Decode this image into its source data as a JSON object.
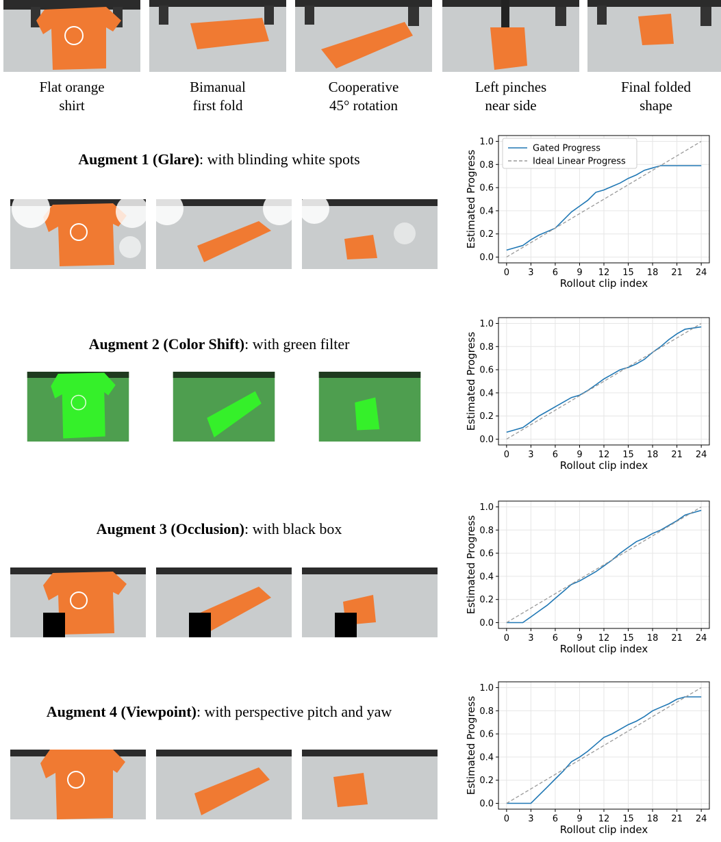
{
  "top_captions": [
    {
      "line1": "Flat orange",
      "line2": "shirt"
    },
    {
      "line1": "Bimanual",
      "line2": "first fold"
    },
    {
      "line1": "Cooperative",
      "line2": "45° rotation"
    },
    {
      "line1": "Left pinches",
      "line2": "near side"
    },
    {
      "line1": "Final folded",
      "line2": "shape"
    }
  ],
  "augments": [
    {
      "title_bold": "Augment 1 (Glare)",
      "title_rest": ": with blinding white spots"
    },
    {
      "title_bold": "Augment 2 (Color Shift)",
      "title_rest": ": with green filter"
    },
    {
      "title_bold": "Augment 3 (Occlusion)",
      "title_rest": ": with black box"
    },
    {
      "title_bold": "Augment 4 (Viewpoint)",
      "title_rest": ": with perspective pitch and yaw"
    }
  ],
  "colors": {
    "shirt_orange": "#f07a32",
    "shirt_green": "#35f02a",
    "floor_gray": "#c9cccd",
    "floor_green": "#4e9e4f",
    "gated_line": "#1f77b4",
    "ideal_line": "#999999"
  },
  "chart_data": [
    {
      "type": "line",
      "xlabel": "Rollout clip index",
      "ylabel": "Estimated Progress",
      "xlim": [
        0,
        24
      ],
      "ylim": [
        0,
        1.0
      ],
      "xticks": [
        "0",
        "3",
        "6",
        "9",
        "12",
        "15",
        "18",
        "21",
        "24"
      ],
      "yticks": [
        "0.0",
        "0.2",
        "0.4",
        "0.6",
        "0.8",
        "1.0"
      ],
      "grid": true,
      "legend": "top-left",
      "series": [
        {
          "name": "Gated Progress",
          "x": [
            0,
            1,
            2,
            3,
            4,
            5,
            6,
            7,
            8,
            9,
            10,
            11,
            12,
            13,
            14,
            15,
            16,
            17,
            18,
            19,
            20,
            21,
            22,
            23,
            24
          ],
          "y": [
            0.06,
            0.08,
            0.1,
            0.15,
            0.19,
            0.22,
            0.25,
            0.32,
            0.39,
            0.44,
            0.49,
            0.56,
            0.58,
            0.61,
            0.64,
            0.68,
            0.71,
            0.75,
            0.77,
            0.79,
            0.79,
            0.79,
            0.79,
            0.79,
            0.79
          ]
        },
        {
          "name": "Ideal Linear Progress",
          "x": [
            0,
            24
          ],
          "y": [
            0,
            1.0
          ]
        }
      ]
    },
    {
      "type": "line",
      "xlabel": "Rollout clip index",
      "ylabel": "Estimated Progress",
      "xlim": [
        0,
        24
      ],
      "ylim": [
        0,
        1.0
      ],
      "xticks": [
        "0",
        "3",
        "6",
        "9",
        "12",
        "15",
        "18",
        "21",
        "24"
      ],
      "yticks": [
        "0.0",
        "0.2",
        "0.4",
        "0.6",
        "0.8",
        "1.0"
      ],
      "grid": true,
      "series": [
        {
          "name": "Gated Progress",
          "x": [
            0,
            1,
            2,
            3,
            4,
            5,
            6,
            7,
            8,
            9,
            10,
            11,
            12,
            13,
            14,
            15,
            16,
            17,
            18,
            19,
            20,
            21,
            22,
            23,
            24
          ],
          "y": [
            0.06,
            0.08,
            0.1,
            0.15,
            0.2,
            0.24,
            0.28,
            0.32,
            0.36,
            0.38,
            0.42,
            0.47,
            0.52,
            0.56,
            0.6,
            0.62,
            0.65,
            0.69,
            0.75,
            0.8,
            0.86,
            0.91,
            0.95,
            0.96,
            0.97
          ]
        },
        {
          "name": "Ideal Linear Progress",
          "x": [
            0,
            24
          ],
          "y": [
            0,
            1.0
          ]
        }
      ]
    },
    {
      "type": "line",
      "xlabel": "Rollout clip index",
      "ylabel": "Estimated Progress",
      "xlim": [
        0,
        24
      ],
      "ylim": [
        0,
        1.0
      ],
      "xticks": [
        "0",
        "3",
        "6",
        "9",
        "12",
        "15",
        "18",
        "21",
        "24"
      ],
      "yticks": [
        "0.0",
        "0.2",
        "0.4",
        "0.6",
        "0.8",
        "1.0"
      ],
      "grid": true,
      "series": [
        {
          "name": "Gated Progress",
          "x": [
            0,
            1,
            2,
            3,
            4,
            5,
            6,
            7,
            8,
            9,
            10,
            11,
            12,
            13,
            14,
            15,
            16,
            17,
            18,
            19,
            20,
            21,
            22,
            23,
            24
          ],
          "y": [
            0,
            0,
            0,
            0.05,
            0.1,
            0.15,
            0.21,
            0.27,
            0.33,
            0.36,
            0.4,
            0.44,
            0.49,
            0.54,
            0.6,
            0.65,
            0.7,
            0.73,
            0.77,
            0.8,
            0.84,
            0.88,
            0.93,
            0.95,
            0.97
          ]
        },
        {
          "name": "Ideal Linear Progress",
          "x": [
            0,
            24
          ],
          "y": [
            0,
            1.0
          ]
        }
      ]
    },
    {
      "type": "line",
      "xlabel": "Rollout clip index",
      "ylabel": "Estimated Progress",
      "xlim": [
        0,
        24
      ],
      "ylim": [
        0,
        1.0
      ],
      "xticks": [
        "0",
        "3",
        "6",
        "9",
        "12",
        "15",
        "18",
        "21",
        "24"
      ],
      "yticks": [
        "0.0",
        "0.2",
        "0.4",
        "0.6",
        "0.8",
        "1.0"
      ],
      "grid": true,
      "series": [
        {
          "name": "Gated Progress",
          "x": [
            0,
            1,
            2,
            3,
            4,
            5,
            6,
            7,
            8,
            9,
            10,
            11,
            12,
            13,
            14,
            15,
            16,
            17,
            18,
            19,
            20,
            21,
            22,
            23,
            24
          ],
          "y": [
            0,
            0,
            0,
            0,
            0.07,
            0.14,
            0.21,
            0.28,
            0.36,
            0.4,
            0.45,
            0.51,
            0.57,
            0.6,
            0.64,
            0.68,
            0.71,
            0.75,
            0.8,
            0.83,
            0.86,
            0.9,
            0.92,
            0.92,
            0.92
          ]
        },
        {
          "name": "Ideal Linear Progress",
          "x": [
            0,
            24
          ],
          "y": [
            0,
            1.0
          ]
        }
      ]
    }
  ]
}
